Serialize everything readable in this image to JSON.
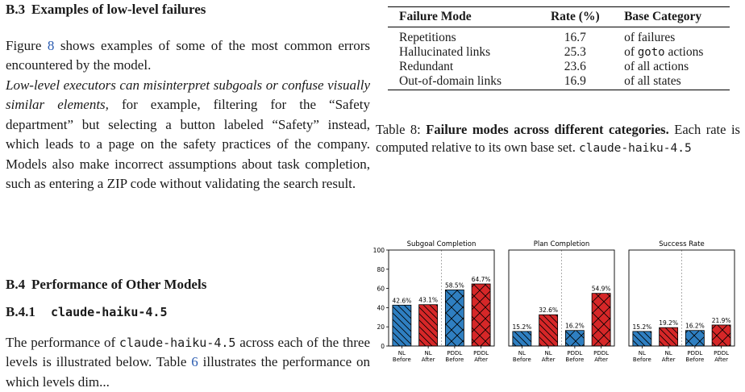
{
  "sections": {
    "b3": {
      "number": "B.3",
      "title": "Examples of low-level failures"
    },
    "b3_para1": {
      "pre": "Figure ",
      "ref": "8",
      "post": " shows examples of some of the most common errors encountered by the model."
    },
    "b3_para2": {
      "italic": "Low-level executors can misinterpret subgoals or confuse visually similar elements,",
      "rest": " for example, filtering for the “Safety department” but selecting a button labeled “Safety” instead, which leads to a page on the safety practices of the company. Models also make incorrect assumptions about task completion, such as entering a ZIP code without validating the search result."
    },
    "b4": {
      "number": "B.4",
      "title": "Performance of Other Models"
    },
    "b41": {
      "number": "B.4.1",
      "title": "claude-haiku-4.5"
    },
    "b41_para": {
      "pre": "The performance of ",
      "code": "claude-haiku-4.5",
      "mid": " across each of the three levels is illustrated below. Table ",
      "ref": "6",
      "post": " illustrates the performance on which levels dim..."
    }
  },
  "table": {
    "headers": [
      "Failure Mode",
      "Rate (%)",
      "Base Category"
    ],
    "rows": [
      {
        "mode": "Repetitions",
        "rate": "16.7",
        "base_pre": "of failures",
        "base_code": "",
        "base_post": ""
      },
      {
        "mode": "Hallucinated links",
        "rate": "25.3",
        "base_pre": "of ",
        "base_code": "goto",
        "base_post": " actions"
      },
      {
        "mode": "Redundant",
        "rate": "23.6",
        "base_pre": "of all actions",
        "base_code": "",
        "base_post": ""
      },
      {
        "mode": "Out-of-domain links",
        "rate": "16.9",
        "base_pre": "of all states",
        "base_code": "",
        "base_post": ""
      }
    ]
  },
  "caption": {
    "label": "Table 8: ",
    "bold": "Failure modes across different categories.",
    "text": " Each rate is computed relative to its own base set. ",
    "code": "claude-haiku-4.5"
  },
  "chart_data": {
    "type": "bar",
    "ylim": [
      0,
      100
    ],
    "yticks": [
      0,
      20,
      40,
      60,
      80,
      100
    ],
    "categories": [
      "NL\nBefore",
      "NL\nAfter",
      "PDDL\nBefore",
      "PDDL\nAfter"
    ],
    "colors": [
      "#2f7fc1",
      "#d62728",
      "#2f7fc1",
      "#d62728"
    ],
    "hatches": [
      "\\\\",
      "\\\\",
      "x",
      "x"
    ],
    "panels": [
      {
        "title": "Subgoal Completion",
        "values": [
          42.6,
          43.1,
          58.5,
          64.7
        ],
        "labels": [
          "42.6%",
          "43.1%",
          "58.5%",
          "64.7%"
        ]
      },
      {
        "title": "Plan Completion",
        "values": [
          15.2,
          32.6,
          16.2,
          54.9
        ],
        "labels": [
          "15.2%",
          "32.6%",
          "16.2%",
          "54.9%"
        ]
      },
      {
        "title": "Success Rate",
        "values": [
          15.2,
          19.2,
          16.2,
          21.9
        ],
        "labels": [
          "15.2%",
          "19.2%",
          "16.2%",
          "21.9%"
        ]
      }
    ]
  }
}
